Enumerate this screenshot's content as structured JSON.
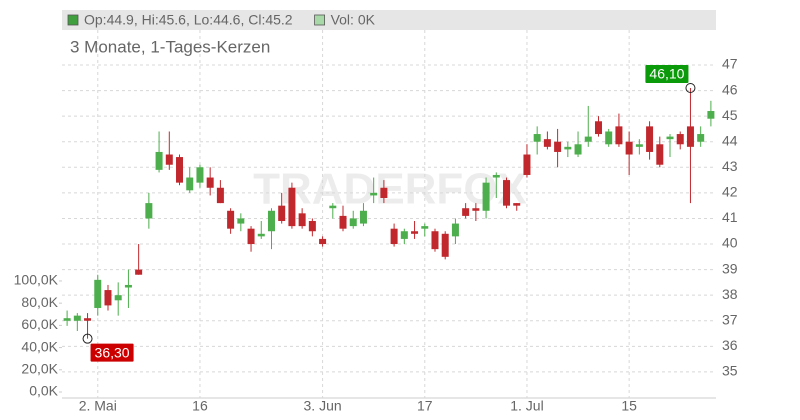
{
  "chart_data": {
    "type": "candlestick",
    "subtitle": "3 Monate, 1-Tages-Kerzen",
    "watermark": "TRADERFOX",
    "legend": [
      {
        "label": "Op:44.9, Hi:45.6, Lo:44.6, Cl:45.2",
        "color": "#3f9f3f"
      },
      {
        "label": "Vol: 0K",
        "color": "#a8d8a8"
      }
    ],
    "categories": [
      null,
      null,
      null,
      "2. Mai",
      null,
      null,
      null,
      null,
      null,
      null,
      null,
      null,
      null,
      "16",
      null,
      null,
      null,
      null,
      null,
      null,
      null,
      null,
      null,
      null,
      null,
      "3. Jun",
      null,
      null,
      null,
      null,
      null,
      null,
      null,
      null,
      null,
      "17",
      null,
      null,
      null,
      null,
      null,
      null,
      null,
      null,
      null,
      "1. Jul",
      null,
      null,
      null,
      null,
      null,
      null,
      null,
      null,
      null,
      "15",
      null,
      null,
      null,
      null,
      null,
      null,
      null,
      null
    ],
    "series": [
      {
        "open": [
          37.0,
          37.0,
          37.1,
          37.5,
          38.2,
          37.8,
          38.3,
          39.0,
          41.0,
          42.9,
          43.5,
          43.4,
          42.1,
          42.4,
          42.6,
          42.2,
          41.3,
          40.8,
          40.6,
          40.3,
          40.5,
          41.5,
          42.2,
          41.2,
          40.9,
          40.2,
          41.4,
          41.1,
          40.7,
          40.8,
          41.9,
          42.2,
          40.6,
          40.2,
          40.5,
          40.6,
          40.5,
          40.4,
          40.3,
          41.4,
          41.4,
          41.3,
          42.6,
          42.5,
          41.6,
          43.5,
          44.0,
          44.1,
          44.0,
          43.7,
          43.5,
          44.0,
          44.8,
          43.9,
          44.6,
          44.0,
          43.8,
          44.6,
          43.9,
          44.1,
          44.3,
          44.6,
          44.0,
          44.9
        ],
        "high": [
          37.4,
          37.3,
          37.3,
          38.8,
          38.4,
          38.5,
          39.0,
          40.0,
          42.0,
          44.4,
          44.4,
          43.5,
          43.0,
          43.1,
          43.0,
          42.5,
          41.4,
          41.2,
          40.7,
          40.9,
          41.4,
          42.0,
          42.4,
          41.4,
          41.0,
          40.3,
          41.6,
          41.5,
          41.3,
          41.6,
          42.6,
          42.5,
          40.8,
          40.6,
          40.9,
          40.8,
          40.6,
          40.5,
          41.0,
          41.6,
          41.6,
          42.6,
          42.8,
          42.6,
          41.6,
          43.9,
          44.6,
          44.4,
          44.5,
          44.0,
          44.4,
          45.4,
          45.0,
          44.5,
          45.1,
          44.4,
          44.1,
          44.8,
          44.2,
          44.3,
          44.4,
          46.1,
          44.6,
          45.6
        ],
        "low": [
          36.8,
          36.6,
          36.3,
          37.2,
          37.4,
          37.2,
          37.5,
          38.8,
          40.6,
          42.8,
          42.9,
          42.3,
          42.0,
          42.2,
          41.9,
          41.6,
          40.4,
          40.5,
          39.7,
          40.2,
          39.8,
          40.8,
          40.6,
          40.6,
          40.3,
          39.9,
          41.0,
          40.5,
          40.6,
          40.7,
          41.6,
          41.6,
          39.9,
          40.0,
          40.2,
          40.3,
          39.7,
          39.4,
          40.0,
          41.0,
          40.9,
          41.0,
          41.8,
          41.4,
          41.3,
          42.6,
          43.5,
          43.7,
          43.0,
          43.4,
          43.4,
          43.8,
          44.2,
          43.8,
          43.8,
          42.7,
          43.5,
          43.3,
          43.0,
          43.4,
          43.7,
          41.6,
          43.8,
          44.6
        ],
        "close": [
          37.1,
          37.2,
          37.0,
          38.6,
          37.6,
          38.0,
          38.4,
          38.8,
          41.6,
          43.6,
          43.1,
          42.4,
          42.6,
          43.0,
          42.2,
          41.6,
          40.6,
          41.0,
          40.0,
          40.4,
          41.3,
          40.9,
          40.7,
          40.7,
          40.5,
          40.0,
          41.5,
          40.6,
          41.0,
          41.3,
          42.0,
          41.8,
          40.0,
          40.5,
          40.4,
          40.7,
          39.8,
          39.5,
          40.8,
          41.1,
          41.3,
          42.4,
          42.7,
          41.5,
          41.5,
          42.7,
          44.3,
          43.8,
          43.6,
          43.8,
          43.9,
          44.2,
          44.3,
          44.4,
          43.9,
          43.5,
          43.9,
          43.6,
          43.1,
          44.2,
          43.9,
          43.8,
          44.3,
          45.2
        ]
      }
    ],
    "up_color": "#4cae4c",
    "down_color": "#c0282d",
    "annotations": [
      {
        "label": "36,30",
        "value": 36.3,
        "color": "#cc0000"
      },
      {
        "label": "46,10",
        "value": 46.1,
        "color": "#0a9a0a"
      }
    ],
    "ylim": [
      33.98,
      49.15
    ],
    "yticks": [
      35,
      36,
      37,
      38,
      39,
      40,
      41,
      42,
      43,
      44,
      45,
      46,
      47
    ],
    "y2lim": [
      -5400,
      344000
    ],
    "y2ticks": [
      {
        "value": 0,
        "label": "0,0K"
      },
      {
        "value": 20000,
        "label": "20,0K"
      },
      {
        "value": 40000,
        "label": "40,0K"
      },
      {
        "value": 60000,
        "label": "60,0K"
      },
      {
        "value": 80000,
        "label": "80,0K"
      },
      {
        "value": 100000,
        "label": "100,0K"
      }
    ],
    "grid": true
  }
}
